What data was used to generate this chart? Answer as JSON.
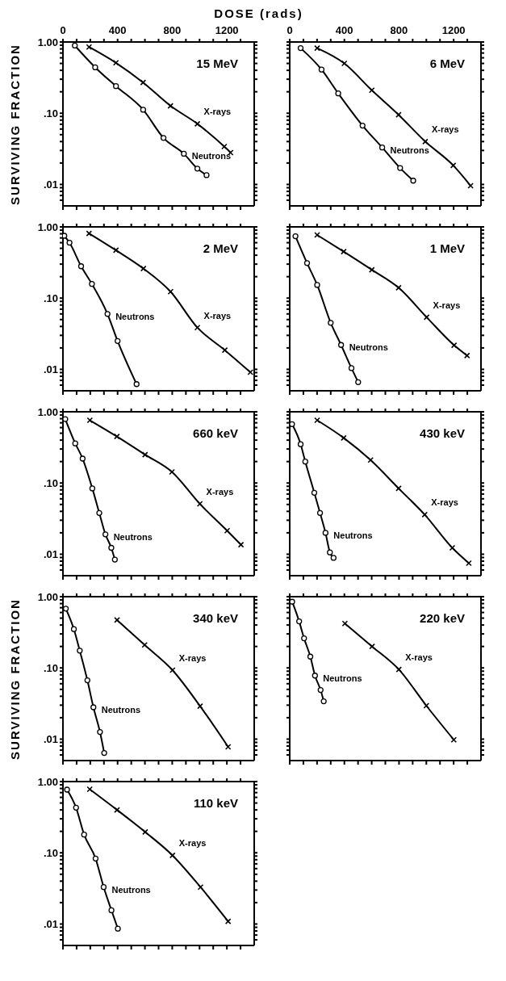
{
  "chart_data": [
    {
      "type": "line",
      "title": "15 MeV",
      "xlabel": "DOSE (rads)",
      "ylabel": "SURVIVING FRACTION",
      "log": "y",
      "xlim": [
        0,
        1400
      ],
      "xticks": [
        0,
        {
          "value": 100,
          "label": null
        },
        {
          "value": 200,
          "label": null
        },
        {
          "value": 300,
          "label": null
        },
        400,
        {
          "value": 500,
          "label": null
        },
        {
          "value": 600,
          "label": null
        },
        {
          "value": 700,
          "label": null
        },
        800,
        {
          "value": 900,
          "label": null
        },
        {
          "value": 1000,
          "label": null
        },
        {
          "value": 1100,
          "label": null
        },
        1200,
        {
          "value": 1300,
          "label": null
        }
      ],
      "ylim": [
        0.005,
        1
      ],
      "yticks": [
        {
          "value": 1,
          "label": "1.00"
        },
        {
          "value": 0.9,
          "label": null
        },
        {
          "value": 0.8,
          "label": null
        },
        {
          "value": 0.7,
          "label": null
        },
        {
          "value": 0.6,
          "label": null
        },
        {
          "value": 0.5,
          "label": null
        },
        {
          "value": 0.4,
          "label": null
        },
        {
          "value": 0.3,
          "label": null
        },
        {
          "value": 0.2,
          "label": null
        },
        {
          "value": 0.1,
          "label": ".10"
        },
        {
          "value": 0.09,
          "label": null
        },
        {
          "value": 0.08,
          "label": null
        },
        {
          "value": 0.07,
          "label": null
        },
        {
          "value": 0.06,
          "label": null
        },
        {
          "value": 0.05,
          "label": null
        },
        {
          "value": 0.04,
          "label": null
        },
        {
          "value": 0.03,
          "label": null
        },
        {
          "value": 0.02,
          "label": null
        },
        {
          "value": 0.01,
          "label": ".01"
        },
        {
          "value": 0.009,
          "label": null
        },
        {
          "value": 0.008,
          "label": null
        },
        {
          "value": 0.007,
          "label": null
        },
        {
          "value": 0.006,
          "label": null
        }
      ],
      "series": [
        {
          "name": "Neutrons",
          "color": "#000000",
          "marker": "circle",
          "x": [
            87,
            236,
            388,
            587,
            736,
            885,
            984,
            1051
          ],
          "values": [
            0.89,
            0.44,
            0.24,
            0.112,
            0.045,
            0.027,
            0.0167,
            0.0135
          ]
        },
        {
          "name": "X-rays",
          "color": "#000000",
          "marker": "cross",
          "x": [
            191,
            388,
            587,
            787,
            984,
            1181,
            1227
          ],
          "values": [
            0.85,
            0.51,
            0.27,
            0.127,
            0.071,
            0.034,
            0.028
          ]
        }
      ]
    },
    {
      "type": "line",
      "title": "6 MeV",
      "tick_labels": "x",
      "log": "y",
      "xlim": [
        0,
        1400
      ],
      "xticks": [
        0,
        {
          "value": 100,
          "label": null
        },
        {
          "value": 200,
          "label": null
        },
        {
          "value": 300,
          "label": null
        },
        400,
        {
          "value": 500,
          "label": null
        },
        {
          "value": 600,
          "label": null
        },
        {
          "value": 700,
          "label": null
        },
        800,
        {
          "value": 900,
          "label": null
        },
        {
          "value": 1000,
          "label": null
        },
        {
          "value": 1100,
          "label": null
        },
        1200,
        {
          "value": 1300,
          "label": null
        }
      ],
      "ylim": [
        0.005,
        1
      ],
      "yticks": [
        {
          "value": 1,
          "label": null
        },
        {
          "value": 0.9,
          "label": null
        },
        {
          "value": 0.8,
          "label": null
        },
        {
          "value": 0.7,
          "label": null
        },
        {
          "value": 0.6,
          "label": null
        },
        {
          "value": 0.5,
          "label": null
        },
        {
          "value": 0.4,
          "label": null
        },
        {
          "value": 0.3,
          "label": null
        },
        {
          "value": 0.2,
          "label": null
        },
        {
          "value": 0.1,
          "label": null
        },
        {
          "value": 0.09,
          "label": null
        },
        {
          "value": 0.08,
          "label": null
        },
        {
          "value": 0.07,
          "label": null
        },
        {
          "value": 0.06,
          "label": null
        },
        {
          "value": 0.05,
          "label": null
        },
        {
          "value": 0.04,
          "label": null
        },
        {
          "value": 0.03,
          "label": null
        },
        {
          "value": 0.02,
          "label": null
        },
        {
          "value": 0.01,
          "label": null
        },
        {
          "value": 0.009,
          "label": null
        },
        {
          "value": 0.008,
          "label": null
        },
        {
          "value": 0.007,
          "label": null
        },
        {
          "value": 0.006,
          "label": null
        }
      ],
      "series": [
        {
          "name": "Neutrons",
          "color": "#000000",
          "marker": "circle",
          "x": [
            80,
            233,
            355,
            533,
            677,
            808,
            904
          ],
          "values": [
            0.82,
            0.41,
            0.19,
            0.067,
            0.033,
            0.017,
            0.0113
          ]
        },
        {
          "name": "X-rays",
          "color": "#000000",
          "marker": "cross",
          "x": [
            201,
            400,
            601,
            797,
            992,
            1197,
            1324
          ],
          "values": [
            0.82,
            0.5,
            0.21,
            0.095,
            0.04,
            0.0185,
            0.0096
          ]
        }
      ]
    },
    {
      "type": "line",
      "title": "2 MeV",
      "tick_labels": "y",
      "log": "y",
      "xlim": [
        0,
        1400
      ],
      "xticks": [
        0,
        {
          "value": 100,
          "label": null
        },
        {
          "value": 200,
          "label": null
        },
        {
          "value": 300,
          "label": null
        },
        400,
        {
          "value": 500,
          "label": null
        },
        {
          "value": 600,
          "label": null
        },
        {
          "value": 700,
          "label": null
        },
        800,
        {
          "value": 900,
          "label": null
        },
        {
          "value": 1000,
          "label": null
        },
        {
          "value": 1100,
          "label": null
        },
        1200,
        {
          "value": 1300,
          "label": null
        }
      ],
      "ylim": [
        0.005,
        1
      ],
      "yticks": [
        {
          "value": 1,
          "label": "1.00"
        },
        {
          "value": 0.9,
          "label": null
        },
        {
          "value": 0.8,
          "label": null
        },
        {
          "value": 0.7,
          "label": null
        },
        {
          "value": 0.6,
          "label": null
        },
        {
          "value": 0.5,
          "label": null
        },
        {
          "value": 0.4,
          "label": null
        },
        {
          "value": 0.3,
          "label": null
        },
        {
          "value": 0.2,
          "label": null
        },
        {
          "value": 0.1,
          "label": ".10"
        },
        {
          "value": 0.09,
          "label": null
        },
        {
          "value": 0.08,
          "label": null
        },
        {
          "value": 0.07,
          "label": null
        },
        {
          "value": 0.06,
          "label": null
        },
        {
          "value": 0.05,
          "label": null
        },
        {
          "value": 0.04,
          "label": null
        },
        {
          "value": 0.03,
          "label": null
        },
        {
          "value": 0.02,
          "label": null
        },
        {
          "value": 0.01,
          "label": ".01"
        },
        {
          "value": 0.009,
          "label": null
        },
        {
          "value": 0.008,
          "label": null
        },
        {
          "value": 0.007,
          "label": null
        },
        {
          "value": 0.006,
          "label": null
        }
      ],
      "series": [
        {
          "name": "Neutrons",
          "color": "#000000",
          "marker": "circle",
          "x": [
            10,
            48,
            133,
            212,
            326,
            400,
            539
          ],
          "values": [
            0.75,
            0.6,
            0.28,
            0.158,
            0.06,
            0.025,
            0.0062
          ]
        },
        {
          "name": "X-rays",
          "color": "#000000",
          "marker": "cross",
          "x": [
            191,
            388,
            589,
            788,
            984,
            1185,
            1372
          ],
          "values": [
            0.81,
            0.47,
            0.26,
            0.123,
            0.0386,
            0.0186,
            0.0091
          ]
        }
      ]
    },
    {
      "type": "line",
      "title": "1 MeV",
      "tick_labels": false,
      "log": "y",
      "xlim": [
        0,
        1400
      ],
      "xticks": [
        0,
        {
          "value": 100,
          "label": null
        },
        {
          "value": 200,
          "label": null
        },
        {
          "value": 300,
          "label": null
        },
        400,
        {
          "value": 500,
          "label": null
        },
        {
          "value": 600,
          "label": null
        },
        {
          "value": 700,
          "label": null
        },
        800,
        {
          "value": 900,
          "label": null
        },
        {
          "value": 1000,
          "label": null
        },
        {
          "value": 1100,
          "label": null
        },
        1200,
        {
          "value": 1300,
          "label": null
        }
      ],
      "ylim": [
        0.005,
        1
      ],
      "yticks": [
        {
          "value": 1,
          "label": null
        },
        {
          "value": 0.9,
          "label": null
        },
        {
          "value": 0.8,
          "label": null
        },
        {
          "value": 0.7,
          "label": null
        },
        {
          "value": 0.6,
          "label": null
        },
        {
          "value": 0.5,
          "label": null
        },
        {
          "value": 0.4,
          "label": null
        },
        {
          "value": 0.3,
          "label": null
        },
        {
          "value": 0.2,
          "label": null
        },
        {
          "value": 0.1,
          "label": null
        },
        {
          "value": 0.09,
          "label": null
        },
        {
          "value": 0.08,
          "label": null
        },
        {
          "value": 0.07,
          "label": null
        },
        {
          "value": 0.06,
          "label": null
        },
        {
          "value": 0.05,
          "label": null
        },
        {
          "value": 0.04,
          "label": null
        },
        {
          "value": 0.03,
          "label": null
        },
        {
          "value": 0.02,
          "label": null
        },
        {
          "value": 0.01,
          "label": null
        },
        {
          "value": 0.009,
          "label": null
        },
        {
          "value": 0.008,
          "label": null
        },
        {
          "value": 0.007,
          "label": null
        },
        {
          "value": 0.006,
          "label": null
        }
      ],
      "series": [
        {
          "name": "Neutrons",
          "color": "#000000",
          "marker": "circle",
          "x": [
            42,
            127,
            201,
            300,
            376,
            452,
            501
          ],
          "values": [
            0.74,
            0.31,
            0.153,
            0.045,
            0.022,
            0.0104,
            0.0066
          ]
        },
        {
          "name": "X-rays",
          "color": "#000000",
          "marker": "cross",
          "x": [
            201,
            395,
            601,
            797,
            1002,
            1203,
            1298
          ],
          "values": [
            0.77,
            0.45,
            0.25,
            0.14,
            0.054,
            0.0218,
            0.0156
          ]
        }
      ]
    },
    {
      "type": "line",
      "title": "660 keV",
      "tick_labels": "y",
      "log": "y",
      "xlim": [
        0,
        1400
      ],
      "xticks": [
        0,
        {
          "value": 100,
          "label": null
        },
        {
          "value": 200,
          "label": null
        },
        {
          "value": 300,
          "label": null
        },
        400,
        {
          "value": 500,
          "label": null
        },
        {
          "value": 600,
          "label": null
        },
        {
          "value": 700,
          "label": null
        },
        800,
        {
          "value": 900,
          "label": null
        },
        {
          "value": 1000,
          "label": null
        },
        {
          "value": 1100,
          "label": null
        },
        1200,
        {
          "value": 1300,
          "label": null
        }
      ],
      "ylim": [
        0.005,
        1
      ],
      "yticks": [
        {
          "value": 1,
          "label": "1.00"
        },
        {
          "value": 0.9,
          "label": null
        },
        {
          "value": 0.8,
          "label": null
        },
        {
          "value": 0.7,
          "label": null
        },
        {
          "value": 0.6,
          "label": null
        },
        {
          "value": 0.5,
          "label": null
        },
        {
          "value": 0.4,
          "label": null
        },
        {
          "value": 0.3,
          "label": null
        },
        {
          "value": 0.2,
          "label": null
        },
        {
          "value": 0.1,
          "label": ".10"
        },
        {
          "value": 0.09,
          "label": null
        },
        {
          "value": 0.08,
          "label": null
        },
        {
          "value": 0.07,
          "label": null
        },
        {
          "value": 0.06,
          "label": null
        },
        {
          "value": 0.05,
          "label": null
        },
        {
          "value": 0.04,
          "label": null
        },
        {
          "value": 0.03,
          "label": null
        },
        {
          "value": 0.02,
          "label": null
        },
        {
          "value": 0.01,
          "label": ".01"
        },
        {
          "value": 0.009,
          "label": null
        },
        {
          "value": 0.008,
          "label": null
        },
        {
          "value": 0.007,
          "label": null
        },
        {
          "value": 0.006,
          "label": null
        }
      ],
      "series": [
        {
          "name": "Neutrons",
          "color": "#000000",
          "marker": "circle",
          "x": [
            17,
            90,
            144,
            215,
            266,
            311,
            354,
            380
          ],
          "values": [
            0.79,
            0.36,
            0.22,
            0.084,
            0.038,
            0.019,
            0.0123,
            0.0084
          ]
        },
        {
          "name": "X-rays",
          "color": "#000000",
          "marker": "cross",
          "x": [
            197,
            395,
            601,
            798,
            1002,
            1202,
            1303
          ],
          "values": [
            0.76,
            0.45,
            0.25,
            0.143,
            0.051,
            0.0214,
            0.0136
          ]
        }
      ]
    },
    {
      "type": "line",
      "title": "430 keV",
      "tick_labels": false,
      "log": "y",
      "xlim": [
        0,
        1400
      ],
      "xticks": [
        0,
        {
          "value": 100,
          "label": null
        },
        {
          "value": 200,
          "label": null
        },
        {
          "value": 300,
          "label": null
        },
        400,
        {
          "value": 500,
          "label": null
        },
        {
          "value": 600,
          "label": null
        },
        {
          "value": 700,
          "label": null
        },
        800,
        {
          "value": 900,
          "label": null
        },
        {
          "value": 1000,
          "label": null
        },
        {
          "value": 1100,
          "label": null
        },
        1200,
        {
          "value": 1300,
          "label": null
        }
      ],
      "ylim": [
        0.005,
        1
      ],
      "yticks": [
        {
          "value": 1,
          "label": null
        },
        {
          "value": 0.9,
          "label": null
        },
        {
          "value": 0.8,
          "label": null
        },
        {
          "value": 0.7,
          "label": null
        },
        {
          "value": 0.6,
          "label": null
        },
        {
          "value": 0.5,
          "label": null
        },
        {
          "value": 0.4,
          "label": null
        },
        {
          "value": 0.3,
          "label": null
        },
        {
          "value": 0.2,
          "label": null
        },
        {
          "value": 0.1,
          "label": null
        },
        {
          "value": 0.09,
          "label": null
        },
        {
          "value": 0.08,
          "label": null
        },
        {
          "value": 0.07,
          "label": null
        },
        {
          "value": 0.06,
          "label": null
        },
        {
          "value": 0.05,
          "label": null
        },
        {
          "value": 0.04,
          "label": null
        },
        {
          "value": 0.03,
          "label": null
        },
        {
          "value": 0.02,
          "label": null
        },
        {
          "value": 0.01,
          "label": null
        },
        {
          "value": 0.009,
          "label": null
        },
        {
          "value": 0.008,
          "label": null
        },
        {
          "value": 0.007,
          "label": null
        },
        {
          "value": 0.006,
          "label": null
        }
      ],
      "series": [
        {
          "name": "Neutrons",
          "color": "#000000",
          "marker": "circle",
          "x": [
            17,
            80,
            114,
            180,
            222,
            262,
            294,
            321
          ],
          "values": [
            0.67,
            0.35,
            0.2,
            0.073,
            0.038,
            0.02,
            0.0106,
            0.0089
          ]
        },
        {
          "name": "X-rays",
          "color": "#000000",
          "marker": "cross",
          "x": [
            201,
            395,
            592,
            797,
            988,
            1190,
            1311
          ],
          "values": [
            0.76,
            0.43,
            0.21,
            0.084,
            0.036,
            0.0123,
            0.0075
          ]
        }
      ]
    },
    {
      "type": "line",
      "title": "340 keV",
      "ylabel": "SURVIVING FRACTION",
      "tick_labels": "y",
      "log": "y",
      "xlim": [
        0,
        1400
      ],
      "xticks": [
        0,
        {
          "value": 100,
          "label": null
        },
        {
          "value": 200,
          "label": null
        },
        {
          "value": 300,
          "label": null
        },
        400,
        {
          "value": 500,
          "label": null
        },
        {
          "value": 600,
          "label": null
        },
        {
          "value": 700,
          "label": null
        },
        800,
        {
          "value": 900,
          "label": null
        },
        {
          "value": 1000,
          "label": null
        },
        {
          "value": 1100,
          "label": null
        },
        1200,
        {
          "value": 1300,
          "label": null
        }
      ],
      "ylim": [
        0.005,
        1
      ],
      "yticks": [
        {
          "value": 1,
          "label": "1.00"
        },
        {
          "value": 0.9,
          "label": null
        },
        {
          "value": 0.8,
          "label": null
        },
        {
          "value": 0.7,
          "label": null
        },
        {
          "value": 0.6,
          "label": null
        },
        {
          "value": 0.5,
          "label": null
        },
        {
          "value": 0.4,
          "label": null
        },
        {
          "value": 0.3,
          "label": null
        },
        {
          "value": 0.2,
          "label": null
        },
        {
          "value": 0.1,
          "label": ".10"
        },
        {
          "value": 0.09,
          "label": null
        },
        {
          "value": 0.08,
          "label": null
        },
        {
          "value": 0.07,
          "label": null
        },
        {
          "value": 0.06,
          "label": null
        },
        {
          "value": 0.05,
          "label": null
        },
        {
          "value": 0.04,
          "label": null
        },
        {
          "value": 0.03,
          "label": null
        },
        {
          "value": 0.02,
          "label": null
        },
        {
          "value": 0.01,
          "label": ".01"
        },
        {
          "value": 0.009,
          "label": null
        },
        {
          "value": 0.008,
          "label": null
        },
        {
          "value": 0.007,
          "label": null
        },
        {
          "value": 0.006,
          "label": null
        }
      ],
      "series": [
        {
          "name": "Neutrons",
          "color": "#000000",
          "marker": "circle",
          "x": [
            21,
            80,
            123,
            179,
            223,
            271,
            302
          ],
          "values": [
            0.68,
            0.35,
            0.175,
            0.067,
            0.028,
            0.0126,
            0.0064
          ]
        },
        {
          "name": "X-rays",
          "color": "#000000",
          "marker": "cross",
          "x": [
            396,
            598,
            802,
            1004,
            1209
          ],
          "values": [
            0.47,
            0.21,
            0.093,
            0.029,
            0.0078
          ]
        }
      ]
    },
    {
      "type": "line",
      "title": "220 keV",
      "tick_labels": false,
      "log": "y",
      "xlim": [
        0,
        1400
      ],
      "xticks": [
        0,
        {
          "value": 100,
          "label": null
        },
        {
          "value": 200,
          "label": null
        },
        {
          "value": 300,
          "label": null
        },
        400,
        {
          "value": 500,
          "label": null
        },
        {
          "value": 600,
          "label": null
        },
        {
          "value": 700,
          "label": null
        },
        800,
        {
          "value": 900,
          "label": null
        },
        {
          "value": 1000,
          "label": null
        },
        {
          "value": 1100,
          "label": null
        },
        1200,
        {
          "value": 1300,
          "label": null
        }
      ],
      "ylim": [
        0.005,
        1
      ],
      "yticks": [
        {
          "value": 1,
          "label": null
        },
        {
          "value": 0.9,
          "label": null
        },
        {
          "value": 0.8,
          "label": null
        },
        {
          "value": 0.7,
          "label": null
        },
        {
          "value": 0.6,
          "label": null
        },
        {
          "value": 0.5,
          "label": null
        },
        {
          "value": 0.4,
          "label": null
        },
        {
          "value": 0.3,
          "label": null
        },
        {
          "value": 0.2,
          "label": null
        },
        {
          "value": 0.1,
          "label": null
        },
        {
          "value": 0.09,
          "label": null
        },
        {
          "value": 0.08,
          "label": null
        },
        {
          "value": 0.07,
          "label": null
        },
        {
          "value": 0.06,
          "label": null
        },
        {
          "value": 0.05,
          "label": null
        },
        {
          "value": 0.04,
          "label": null
        },
        {
          "value": 0.03,
          "label": null
        },
        {
          "value": 0.02,
          "label": null
        },
        {
          "value": 0.01,
          "label": null
        },
        {
          "value": 0.009,
          "label": null
        },
        {
          "value": 0.008,
          "label": null
        },
        {
          "value": 0.007,
          "label": null
        },
        {
          "value": 0.006,
          "label": null
        }
      ],
      "series": [
        {
          "name": "Neutrons",
          "color": "#000000",
          "marker": "circle",
          "x": [
            18,
            69,
            105,
            151,
            185,
            226,
            249
          ],
          "values": [
            0.85,
            0.45,
            0.26,
            0.144,
            0.078,
            0.049,
            0.034
          ]
        },
        {
          "name": "X-rays",
          "color": "#000000",
          "marker": "cross",
          "x": [
            404,
            603,
            799,
            1000,
            1201
          ],
          "values": [
            0.42,
            0.2,
            0.095,
            0.0295,
            0.0098
          ]
        }
      ]
    },
    {
      "type": "line",
      "title": "110 keV",
      "tick_labels": "y",
      "log": "y",
      "xlim": [
        0,
        1400
      ],
      "xticks": [
        0,
        {
          "value": 100,
          "label": null
        },
        {
          "value": 200,
          "label": null
        },
        {
          "value": 300,
          "label": null
        },
        400,
        {
          "value": 500,
          "label": null
        },
        {
          "value": 600,
          "label": null
        },
        {
          "value": 700,
          "label": null
        },
        800,
        {
          "value": 900,
          "label": null
        },
        {
          "value": 1000,
          "label": null
        },
        {
          "value": 1100,
          "label": null
        },
        1200,
        {
          "value": 1300,
          "label": null
        }
      ],
      "ylim": [
        0.005,
        1
      ],
      "yticks": [
        {
          "value": 1,
          "label": "1.00"
        },
        {
          "value": 0.9,
          "label": null
        },
        {
          "value": 0.8,
          "label": null
        },
        {
          "value": 0.7,
          "label": null
        },
        {
          "value": 0.6,
          "label": null
        },
        {
          "value": 0.5,
          "label": null
        },
        {
          "value": 0.4,
          "label": null
        },
        {
          "value": 0.3,
          "label": null
        },
        {
          "value": 0.2,
          "label": null
        },
        {
          "value": 0.1,
          "label": ".10"
        },
        {
          "value": 0.09,
          "label": null
        },
        {
          "value": 0.08,
          "label": null
        },
        {
          "value": 0.07,
          "label": null
        },
        {
          "value": 0.06,
          "label": null
        },
        {
          "value": 0.05,
          "label": null
        },
        {
          "value": 0.04,
          "label": null
        },
        {
          "value": 0.03,
          "label": null
        },
        {
          "value": 0.02,
          "label": null
        },
        {
          "value": 0.01,
          "label": ".01"
        },
        {
          "value": 0.009,
          "label": null
        },
        {
          "value": 0.008,
          "label": null
        },
        {
          "value": 0.007,
          "label": null
        },
        {
          "value": 0.006,
          "label": null
        }
      ],
      "series": [
        {
          "name": "Neutrons",
          "color": "#000000",
          "marker": "circle",
          "x": [
            30,
            96,
            155,
            239,
            298,
            355,
            402
          ],
          "values": [
            0.77,
            0.43,
            0.18,
            0.083,
            0.033,
            0.0156,
            0.0086
          ]
        },
        {
          "name": "X-rays",
          "color": "#000000",
          "marker": "cross",
          "x": [
            196,
            396,
            602,
            802,
            1007,
            1209
          ],
          "values": [
            0.78,
            0.4,
            0.196,
            0.092,
            0.033,
            0.0109
          ]
        }
      ]
    }
  ]
}
